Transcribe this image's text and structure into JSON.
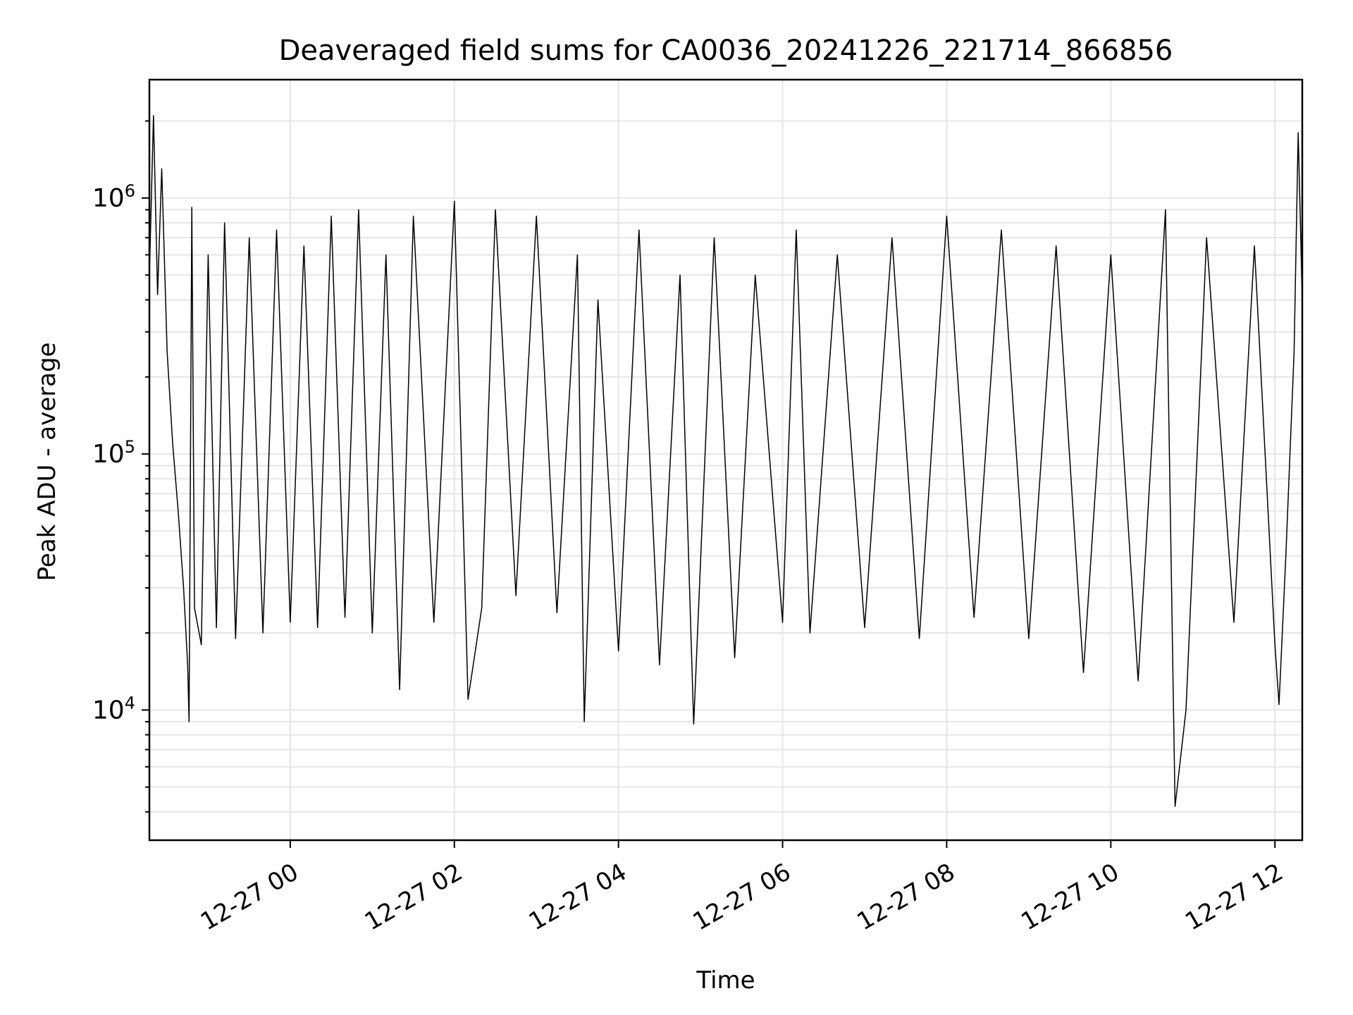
{
  "chart_data": {
    "type": "line",
    "title": "Deaveraged field sums for CA0036_20241226_221714_866856",
    "xlabel": "Time",
    "ylabel": "Peak ADU - average",
    "yscale": "log",
    "ylim": [
      3100,
      2900000
    ],
    "xlim": [
      "2024-12-26 22:17",
      "2024-12-27 12:20"
    ],
    "grid": true,
    "x_ticks": [
      {
        "value": "2024-12-27 00:00",
        "label": "12-27 00"
      },
      {
        "value": "2024-12-27 02:00",
        "label": "12-27 02"
      },
      {
        "value": "2024-12-27 04:00",
        "label": "12-27 04"
      },
      {
        "value": "2024-12-27 06:00",
        "label": "12-27 06"
      },
      {
        "value": "2024-12-27 08:00",
        "label": "12-27 08"
      },
      {
        "value": "2024-12-27 10:00",
        "label": "12-27 10"
      },
      {
        "value": "2024-12-27 12:00",
        "label": "12-27 12"
      }
    ],
    "y_ticks": [
      {
        "value": 10000,
        "base": "10",
        "exp": "4"
      },
      {
        "value": 100000,
        "base": "10",
        "exp": "5"
      },
      {
        "value": 1000000,
        "base": "10",
        "exp": "6"
      }
    ],
    "series": [
      {
        "color": "#000000",
        "points": [
          [
            "2024-12-26 22:17",
            500000
          ],
          [
            "2024-12-26 22:20",
            2100000
          ],
          [
            "2024-12-26 22:23",
            420000
          ],
          [
            "2024-12-26 22:26",
            1300000
          ],
          [
            "2024-12-26 22:30",
            250000
          ],
          [
            "2024-12-26 22:34",
            110000
          ],
          [
            "2024-12-26 22:38",
            60000
          ],
          [
            "2024-12-26 22:42",
            30000
          ],
          [
            "2024-12-26 22:45",
            15000
          ],
          [
            "2024-12-26 22:46",
            9000
          ],
          [
            "2024-12-26 22:48",
            920000
          ],
          [
            "2024-12-26 22:50",
            25000
          ],
          [
            "2024-12-26 22:55",
            18000
          ],
          [
            "2024-12-26 23:00",
            600000
          ],
          [
            "2024-12-26 23:06",
            21000
          ],
          [
            "2024-12-26 23:12",
            800000
          ],
          [
            "2024-12-26 23:20",
            19000
          ],
          [
            "2024-12-26 23:30",
            700000
          ],
          [
            "2024-12-26 23:40",
            20000
          ],
          [
            "2024-12-26 23:50",
            750000
          ],
          [
            "2024-12-27 00:00",
            22000
          ],
          [
            "2024-12-27 00:10",
            650000
          ],
          [
            "2024-12-27 00:20",
            21000
          ],
          [
            "2024-12-27 00:30",
            850000
          ],
          [
            "2024-12-27 00:40",
            23000
          ],
          [
            "2024-12-27 00:50",
            900000
          ],
          [
            "2024-12-27 01:00",
            20000
          ],
          [
            "2024-12-27 01:10",
            600000
          ],
          [
            "2024-12-27 01:20",
            12000
          ],
          [
            "2024-12-27 01:30",
            850000
          ],
          [
            "2024-12-27 01:45",
            22000
          ],
          [
            "2024-12-27 02:00",
            970000
          ],
          [
            "2024-12-27 02:10",
            11000
          ],
          [
            "2024-12-27 02:20",
            25000
          ],
          [
            "2024-12-27 02:30",
            900000
          ],
          [
            "2024-12-27 02:45",
            28000
          ],
          [
            "2024-12-27 03:00",
            850000
          ],
          [
            "2024-12-27 03:15",
            24000
          ],
          [
            "2024-12-27 03:30",
            600000
          ],
          [
            "2024-12-27 03:35",
            9000
          ],
          [
            "2024-12-27 03:45",
            400000
          ],
          [
            "2024-12-27 04:00",
            17000
          ],
          [
            "2024-12-27 04:15",
            750000
          ],
          [
            "2024-12-27 04:30",
            15000
          ],
          [
            "2024-12-27 04:45",
            500000
          ],
          [
            "2024-12-27 04:55",
            8800
          ],
          [
            "2024-12-27 05:10",
            700000
          ],
          [
            "2024-12-27 05:25",
            16000
          ],
          [
            "2024-12-27 05:40",
            500000
          ],
          [
            "2024-12-27 06:00",
            22000
          ],
          [
            "2024-12-27 06:10",
            750000
          ],
          [
            "2024-12-27 06:20",
            20000
          ],
          [
            "2024-12-27 06:40",
            600000
          ],
          [
            "2024-12-27 07:00",
            21000
          ],
          [
            "2024-12-27 07:20",
            700000
          ],
          [
            "2024-12-27 07:40",
            19000
          ],
          [
            "2024-12-27 08:00",
            850000
          ],
          [
            "2024-12-27 08:20",
            23000
          ],
          [
            "2024-12-27 08:40",
            750000
          ],
          [
            "2024-12-27 09:00",
            19000
          ],
          [
            "2024-12-27 09:20",
            650000
          ],
          [
            "2024-12-27 09:40",
            14000
          ],
          [
            "2024-12-27 10:00",
            600000
          ],
          [
            "2024-12-27 10:20",
            13000
          ],
          [
            "2024-12-27 10:40",
            900000
          ],
          [
            "2024-12-27 10:47",
            4200
          ],
          [
            "2024-12-27 10:55",
            10000
          ],
          [
            "2024-12-27 11:10",
            700000
          ],
          [
            "2024-12-27 11:30",
            22000
          ],
          [
            "2024-12-27 11:45",
            650000
          ],
          [
            "2024-12-27 12:00",
            18000
          ],
          [
            "2024-12-27 12:03",
            10500
          ],
          [
            "2024-12-27 12:08",
            40000
          ],
          [
            "2024-12-27 12:14",
            250000
          ],
          [
            "2024-12-27 12:17",
            1800000
          ],
          [
            "2024-12-27 12:20",
            400000
          ]
        ]
      }
    ]
  }
}
